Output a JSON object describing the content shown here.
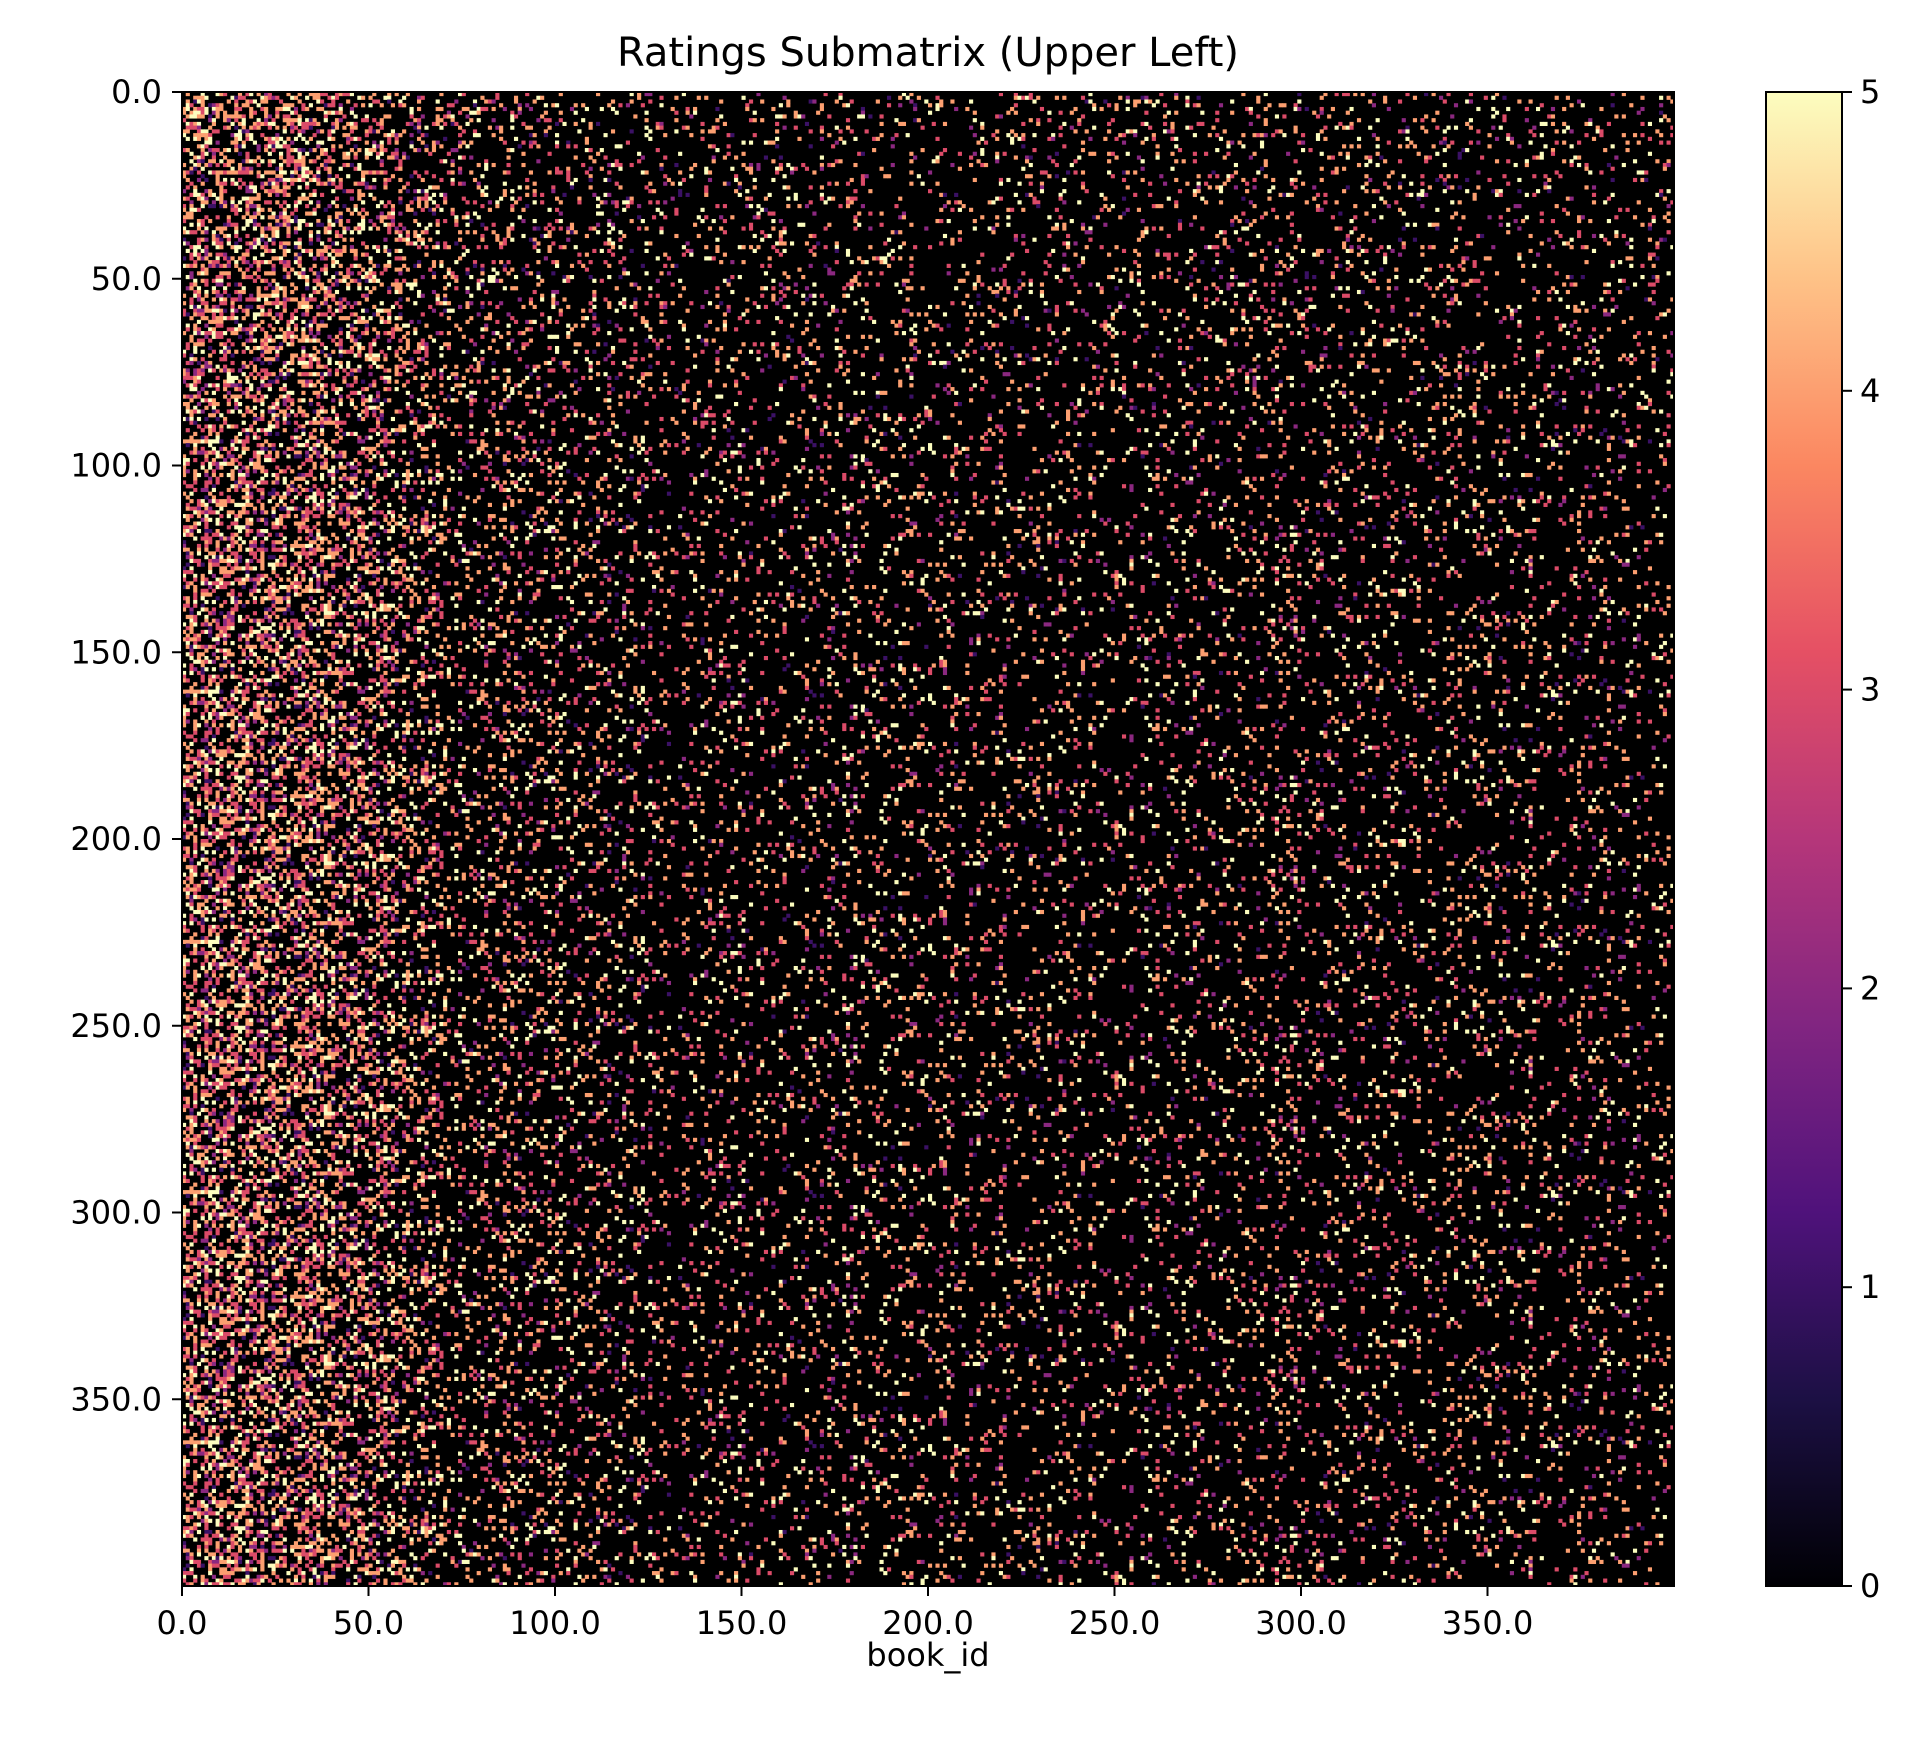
{
  "chart_data": {
    "type": "heatmap",
    "title": "Ratings Submatrix (Upper Left)",
    "xlabel": "book_id",
    "ylabel": "",
    "x_range": [
      0,
      400
    ],
    "y_range": [
      0,
      400
    ],
    "y_inverted": true,
    "x_ticks": [
      0,
      50,
      100,
      150,
      200,
      250,
      300,
      350
    ],
    "x_tick_labels": [
      "0.0",
      "50.0",
      "100.0",
      "150.0",
      "200.0",
      "250.0",
      "300.0",
      "350.0"
    ],
    "y_ticks": [
      0,
      50,
      100,
      150,
      200,
      250,
      300,
      350
    ],
    "y_tick_labels": [
      "0.0",
      "50.0",
      "100.0",
      "150.0",
      "200.0",
      "250.0",
      "300.0",
      "350.0"
    ],
    "colorbar": {
      "min": 0,
      "max": 5,
      "ticks": [
        0,
        1,
        2,
        3,
        4,
        5
      ],
      "tick_labels": [
        "0",
        "1",
        "2",
        "3",
        "4",
        "5"
      ],
      "colormap": "magma",
      "colormap_stops": [
        "#000004",
        "#1c1044",
        "#4f127b",
        "#812581",
        "#b5367a",
        "#e55064",
        "#fb8761",
        "#fec287",
        "#fcfdbf"
      ]
    },
    "grid": false,
    "matrix": {
      "rows": 400,
      "cols": 400,
      "value_set": [
        0,
        1,
        2,
        3,
        4,
        5
      ],
      "description": "sparse ratings; non-zero entries denser in low book_id columns (0-70) and fading to the right"
    }
  }
}
